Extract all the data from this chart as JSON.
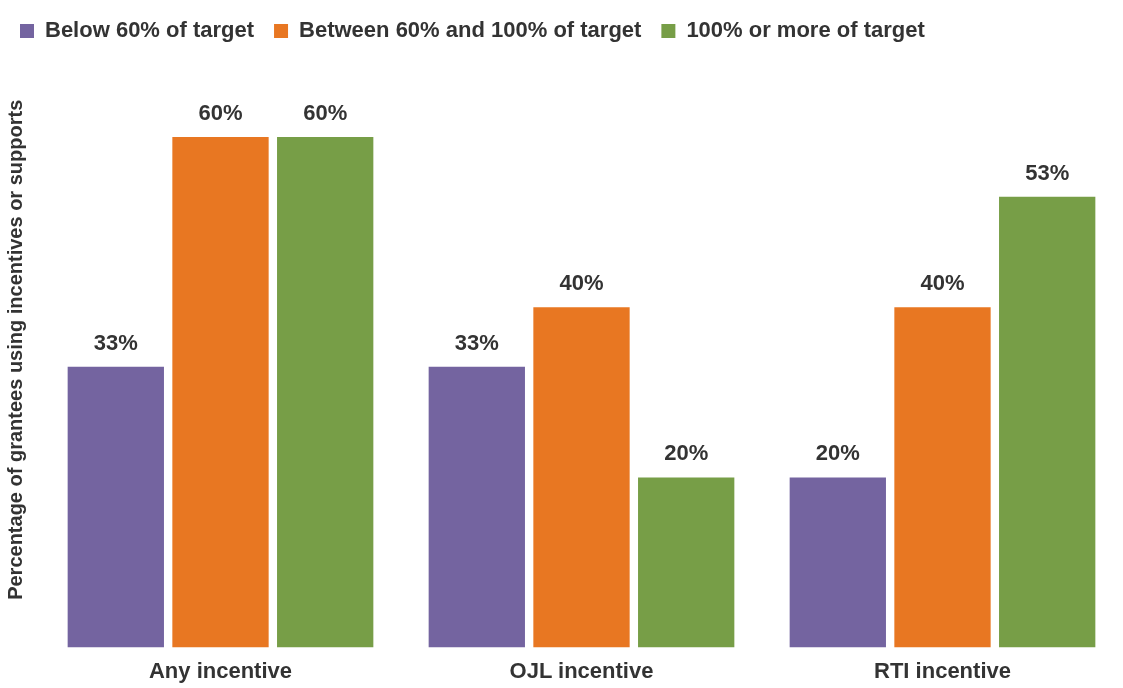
{
  "chart_data": {
    "type": "bar",
    "ylabel": "Percentage of grantees using incentives or supports",
    "categories": [
      "Any incentive",
      "OJL incentive",
      "RTI incentive"
    ],
    "series": [
      {
        "name": "Below 60% of target",
        "color": "#7464a0",
        "values": [
          33,
          33,
          20
        ],
        "value_labels": [
          "33%",
          "33%",
          "20%"
        ]
      },
      {
        "name": "Between 60% and 100% of target",
        "color": "#e87722",
        "values": [
          60,
          40,
          40
        ],
        "value_labels": [
          "60%",
          "40%",
          "40%"
        ]
      },
      {
        "name": "100% or more of target",
        "color": "#779e47",
        "values": [
          60,
          20,
          53
        ],
        "value_labels": [
          "60%",
          "20%",
          "53%"
        ]
      }
    ],
    "legend": "top left",
    "tick_labels": "x",
    "grid": false
  }
}
